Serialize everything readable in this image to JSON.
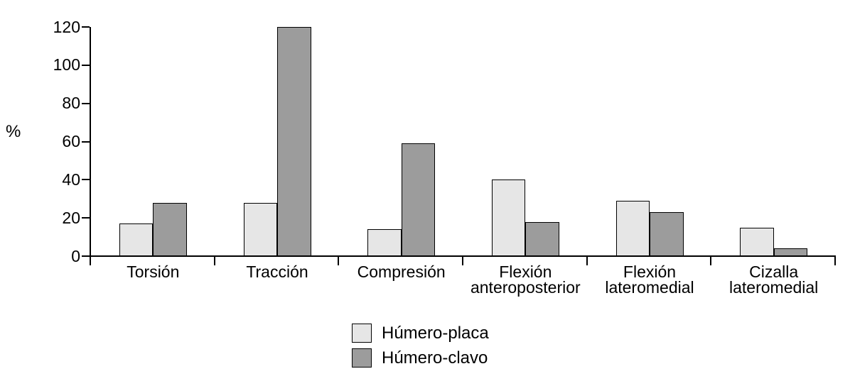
{
  "chart_data": {
    "type": "bar",
    "title": "",
    "xlabel": "",
    "ylabel": "%",
    "ylim": [
      0,
      120
    ],
    "yticks": [
      0,
      20,
      40,
      60,
      80,
      100,
      120
    ],
    "grid": false,
    "legend_position": "bottom-center",
    "axis_color": "#000000",
    "bar_outline_color": "#000000",
    "text_color": "#000000",
    "background_color": "#ffffff",
    "categories": [
      "Torsión",
      "Tracción",
      "Compresión",
      "Flexión anteroposterior",
      "Flexión lateromedial",
      "Cizalla lateromedial"
    ],
    "series": [
      {
        "name": "Húmero-placa",
        "color": "#e6e6e6",
        "values": [
          17,
          28,
          14,
          40,
          29,
          15
        ]
      },
      {
        "name": "Húmero-clavo",
        "color": "#9c9c9c",
        "values": [
          28,
          120,
          59,
          18,
          23,
          4
        ]
      }
    ]
  }
}
